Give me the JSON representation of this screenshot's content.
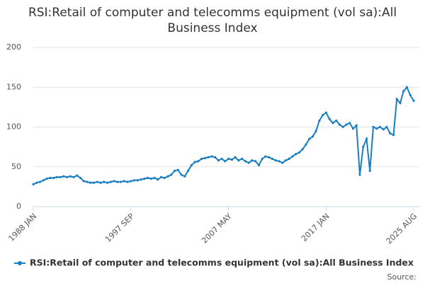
{
  "chart_data": {
    "type": "line",
    "title": "RSI:Retail of computer and telecomms equipment (vol sa):All Business Index",
    "categories": [
      "1988 JAN",
      null,
      null,
      null,
      null,
      null,
      null,
      null,
      null,
      null,
      null,
      null,
      null,
      null,
      null,
      null,
      null,
      null,
      null,
      null,
      null,
      null,
      null,
      null,
      null,
      null,
      null,
      null,
      null,
      "1997 SEP",
      null,
      null,
      null,
      null,
      null,
      null,
      null,
      null,
      null,
      null,
      null,
      null,
      null,
      null,
      null,
      null,
      null,
      null,
      null,
      null,
      null,
      null,
      null,
      null,
      null,
      null,
      null,
      null,
      "2007 MAY",
      null,
      null,
      null,
      null,
      null,
      null,
      null,
      null,
      null,
      null,
      null,
      null,
      null,
      null,
      null,
      null,
      null,
      null,
      null,
      null,
      null,
      null,
      null,
      null,
      null,
      null,
      null,
      null,
      "2017 JAN",
      null,
      null,
      null,
      null,
      null,
      null,
      null,
      null,
      null,
      null,
      null,
      null,
      null,
      null,
      null,
      null,
      null,
      null,
      null,
      null,
      null,
      null,
      null,
      null,
      null,
      "2025 AUG"
    ],
    "series": [
      {
        "name": "RSI:Retail of computer and telecomms equipment (vol sa):All Business Index",
        "color": "#1a7fc1",
        "values": [
          28,
          30,
          31,
          33,
          35,
          36,
          36,
          37,
          37,
          38,
          37,
          38,
          37,
          39,
          36,
          32,
          31,
          30,
          30,
          31,
          30,
          31,
          30,
          31,
          32,
          31,
          31,
          32,
          31,
          32,
          33,
          33,
          34,
          35,
          36,
          35,
          36,
          34,
          37,
          36,
          38,
          40,
          45,
          46,
          40,
          38,
          45,
          52,
          56,
          57,
          60,
          61,
          62,
          63,
          62,
          58,
          60,
          57,
          60,
          59,
          62,
          58,
          60,
          57,
          55,
          58,
          57,
          52,
          60,
          63,
          62,
          60,
          58,
          57,
          55,
          58,
          60,
          63,
          66,
          68,
          72,
          78,
          85,
          88,
          95,
          108,
          115,
          118,
          110,
          105,
          108,
          103,
          100,
          103,
          105,
          98,
          102,
          40,
          75,
          85,
          45,
          100,
          98,
          100,
          97,
          100,
          92,
          90,
          135,
          130,
          145,
          150,
          140,
          133
        ]
      }
    ],
    "ylim": [
      0,
      200
    ],
    "yticks": [
      0,
      50,
      100,
      150,
      200
    ],
    "grid": true,
    "source_label": "Source:"
  }
}
